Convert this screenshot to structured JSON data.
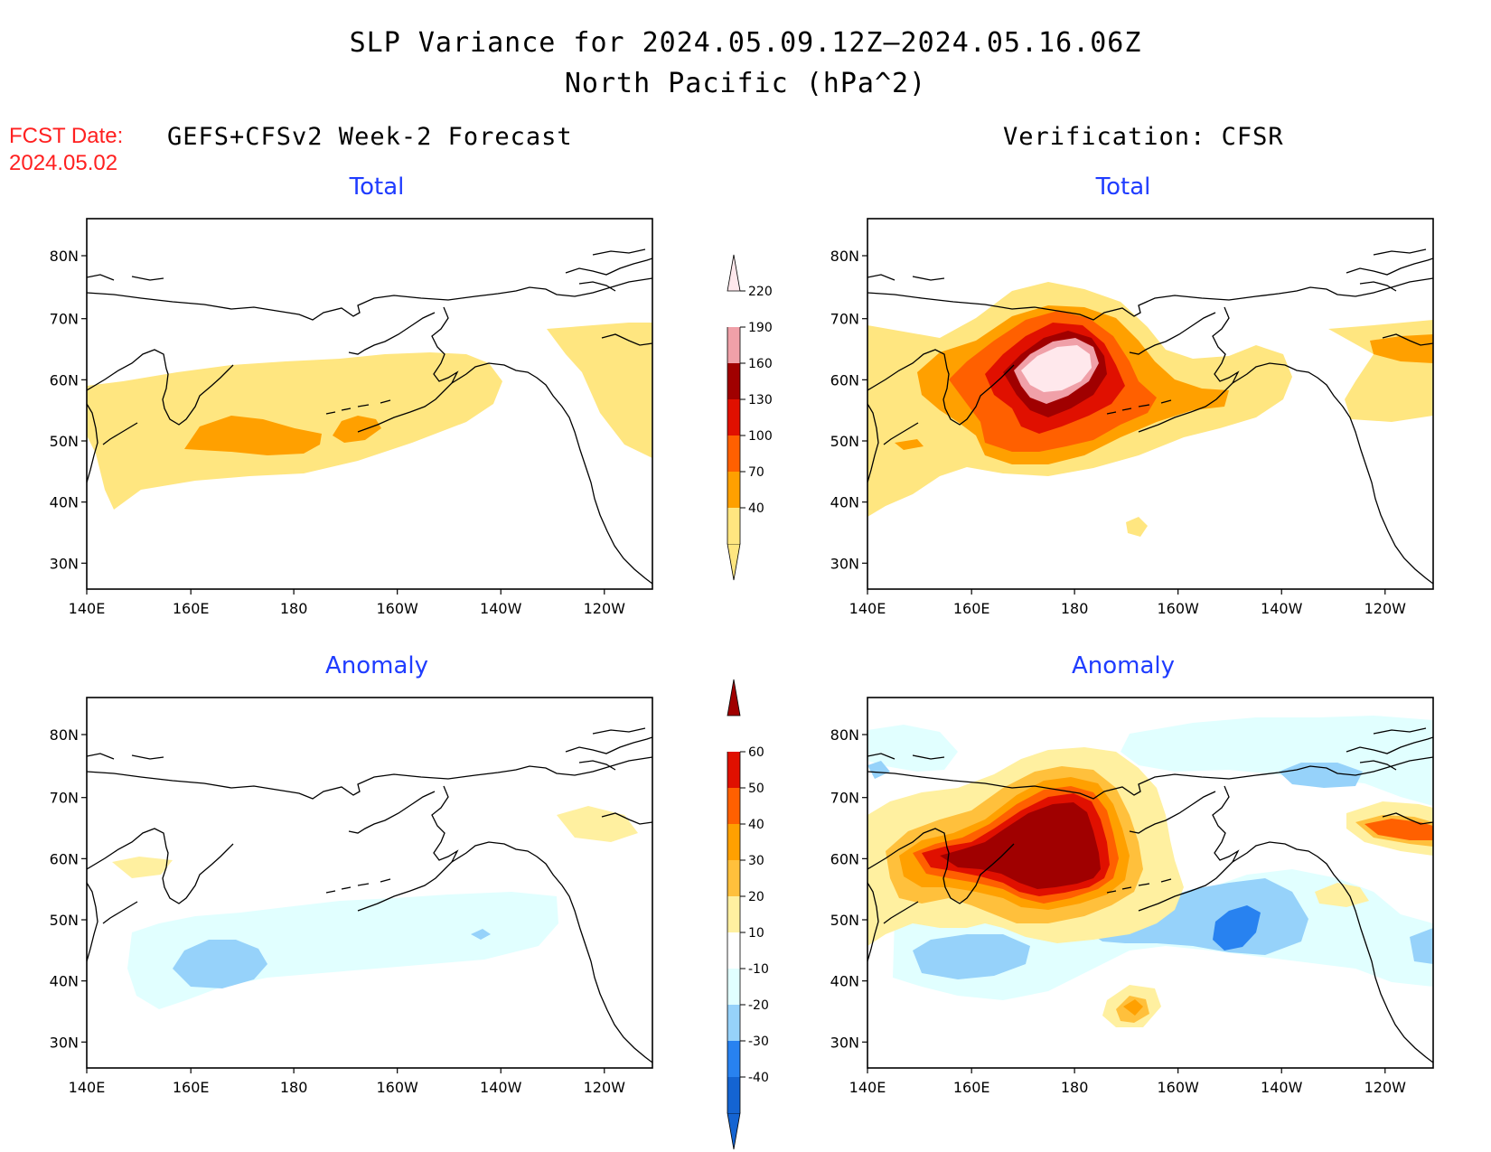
{
  "title": {
    "line1": "SLP Variance for 2024.05.09.12Z–2024.05.16.06Z",
    "line2": "North Pacific (hPa^2)"
  },
  "forecast_date": {
    "label": "FCST Date:",
    "value": "2024.05.02"
  },
  "columns": {
    "left": "GEFS+CFSv2 Week-2 Forecast",
    "right": "Verification: CFSR"
  },
  "panels": {
    "top_left": "Total",
    "top_right": "Total",
    "bottom_left": "Anomaly",
    "bottom_right": "Anomaly"
  },
  "axes": {
    "lat_ticks": [
      "80N",
      "70N",
      "60N",
      "50N",
      "40N",
      "30N"
    ],
    "lon_ticks": [
      "140E",
      "160E",
      "180",
      "160W",
      "140W",
      "120W"
    ]
  },
  "colorbar_total": {
    "levels": [
      "40",
      "70",
      "100",
      "130",
      "160",
      "190",
      "220"
    ],
    "colors": [
      "#ffe680",
      "#ffa000",
      "#ff6000",
      "#e01000",
      "#a00000",
      "#f0a0a8",
      "#ffe8ec"
    ]
  },
  "colorbar_anomaly": {
    "levels": [
      "-40",
      "-30",
      "-20",
      "-10",
      "10",
      "20",
      "30",
      "40",
      "50",
      "60"
    ],
    "colors": [
      "#1464d2",
      "#2882f0",
      "#96d2fa",
      "#e1ffff",
      "#ffffff",
      "#fff0a0",
      "#ffc03c",
      "#ffa000",
      "#ff6000",
      "#e01000",
      "#a00000"
    ]
  }
}
